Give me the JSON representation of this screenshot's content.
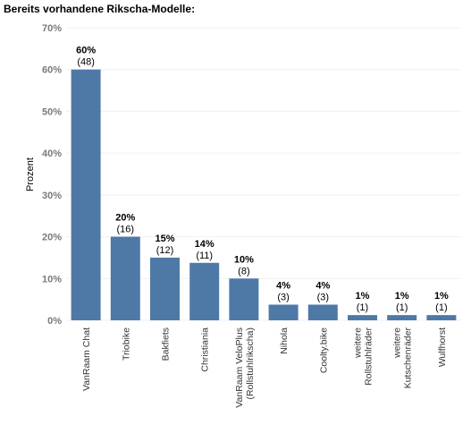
{
  "title": "Bereits vorhandene Rikscha-Modelle:",
  "chart_data": {
    "type": "bar",
    "title": "Bereits vorhandene Rikscha-Modelle:",
    "xlabel": "",
    "ylabel": "Prozent",
    "ylim": [
      0,
      70
    ],
    "yticks": [
      0,
      10,
      20,
      30,
      40,
      50,
      60,
      70
    ],
    "ytick_labels": [
      "0%",
      "10%",
      "20%",
      "30%",
      "40%",
      "50%",
      "60%",
      "70%"
    ],
    "grid": true,
    "bar_color": "#4e79a7",
    "categories": [
      [
        "VanRaam Chat"
      ],
      [
        "Triobike"
      ],
      [
        "Bakfiets"
      ],
      [
        "Christiania"
      ],
      [
        "VanRaam VeloPlus",
        "(Rollstuhlrikscha)"
      ],
      [
        "Nihola"
      ],
      [
        "Coolty.bike"
      ],
      [
        "weitere",
        "Rollstuhlräder"
      ],
      [
        "weitere",
        "Kutschenräder"
      ],
      [
        "Wulfhorst"
      ]
    ],
    "values": [
      60.0,
      20.0,
      15.0,
      13.75,
      10.0,
      3.75,
      3.75,
      1.25,
      1.25,
      1.25
    ],
    "value_labels": [
      "60%",
      "20%",
      "15%",
      "14%",
      "10%",
      "4%",
      "4%",
      "1%",
      "1%",
      "1%"
    ],
    "counts": [
      48,
      16,
      12,
      11,
      8,
      3,
      3,
      1,
      1,
      1
    ],
    "count_labels": [
      "(48)",
      "(16)",
      "(12)",
      "(11)",
      "(8)",
      "(3)",
      "(3)",
      "(1)",
      "(1)",
      "(1)"
    ]
  }
}
